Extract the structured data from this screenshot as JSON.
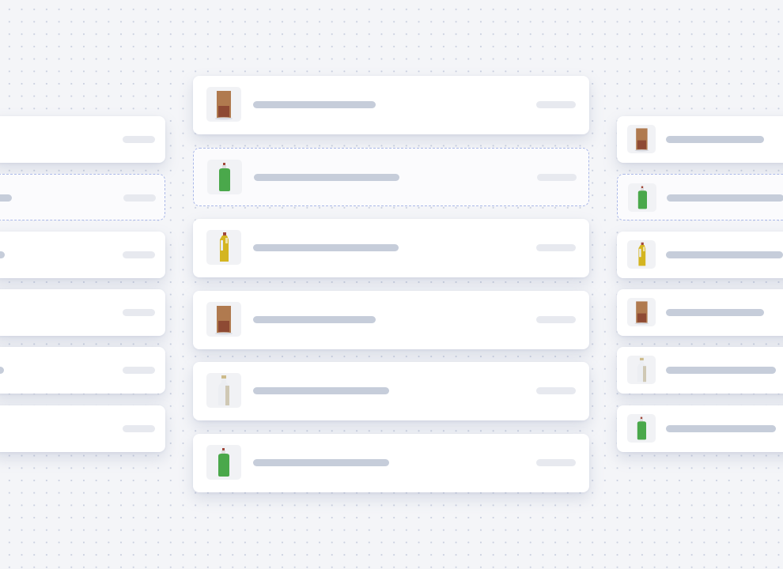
{
  "colors": {
    "background": "#f4f5f8",
    "card": "#ffffff",
    "skeleton_bar": "#c6cdda",
    "skeleton_pill": "#e7e9ef",
    "drop_target_border": "#aab8e8"
  },
  "product_icons": {
    "bag": {
      "name": "paper-bag-icon",
      "body": "#b07a4f",
      "label": "#8e4a34"
    },
    "green": {
      "name": "green-detergent-bottle-icon",
      "body": "#4aa84b",
      "cap": "#a0473a"
    },
    "yellow": {
      "name": "yellow-oil-bottle-icon",
      "body": "#d4b521",
      "cap": "#a0473a"
    },
    "white": {
      "name": "white-milk-bottle-icon",
      "body": "#eceef2",
      "cap": "#cdbb8a"
    }
  },
  "columns": {
    "left": {
      "items": [
        "none",
        "none",
        "none",
        "none",
        "none",
        "none"
      ],
      "drop_target_index": 1
    },
    "center": {
      "items": [
        "bag",
        "green",
        "yellow",
        "bag",
        "white",
        "green"
      ],
      "drop_target_index": 1
    },
    "right": {
      "items": [
        "bag",
        "green",
        "yellow",
        "bag",
        "white",
        "green"
      ],
      "drop_target_index": 1
    }
  }
}
